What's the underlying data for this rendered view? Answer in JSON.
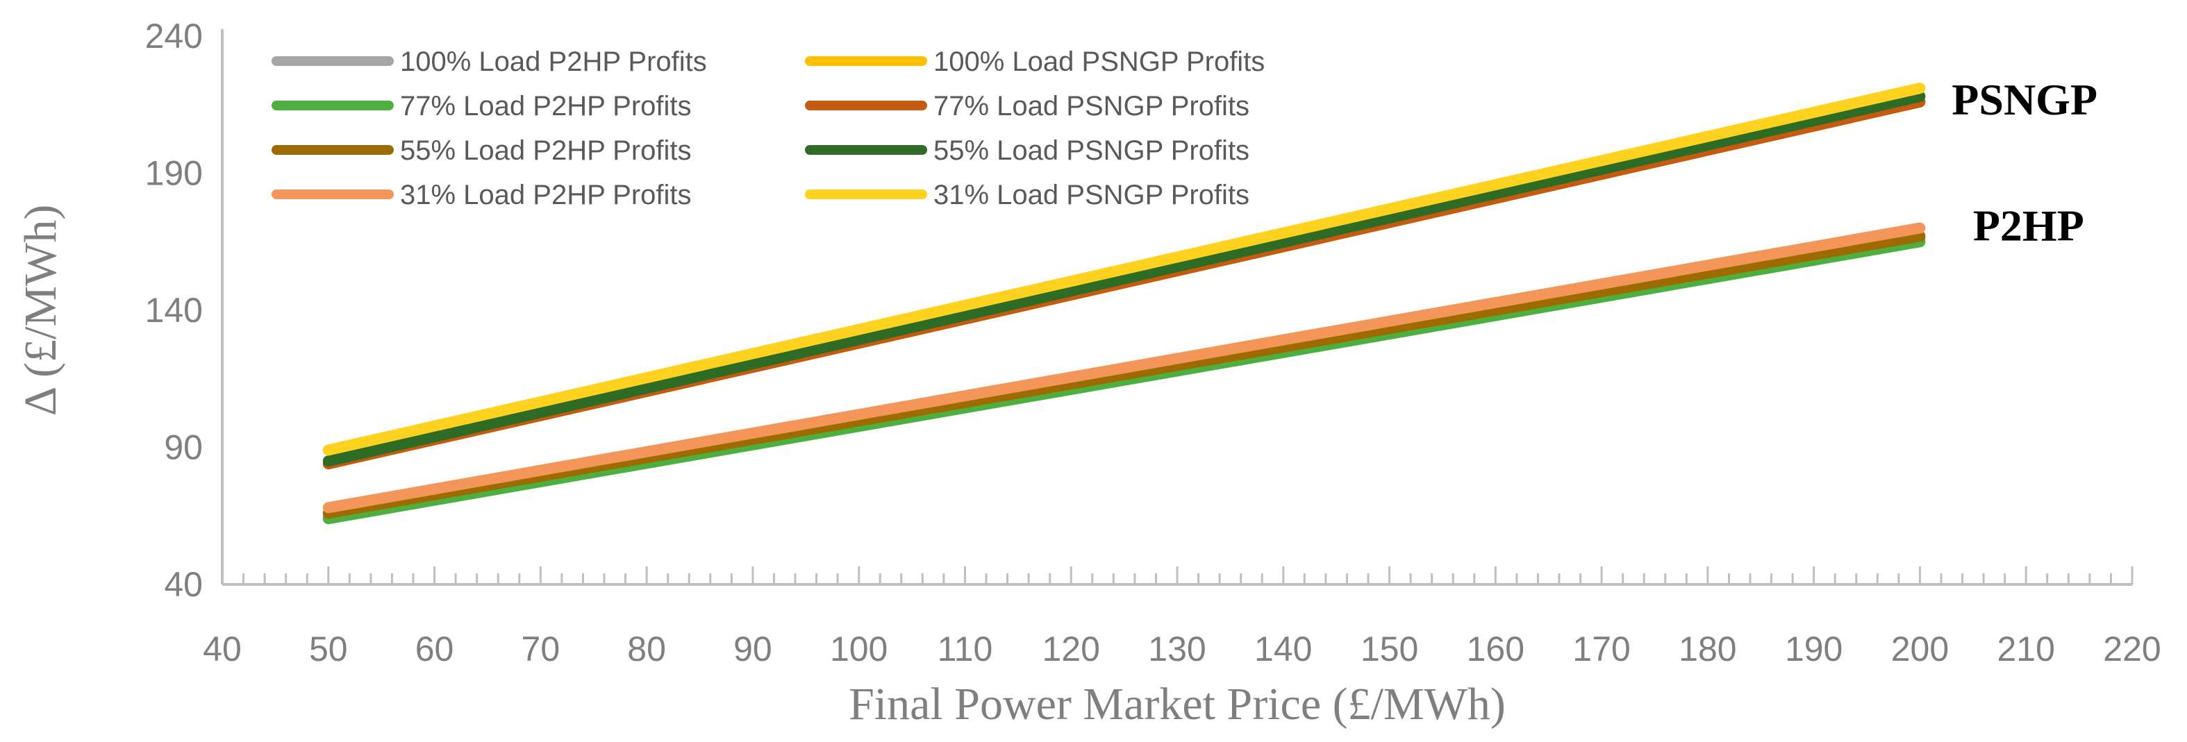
{
  "chart_data": {
    "type": "line",
    "xlabel": "Final Power Market Price (£/MWh)",
    "ylabel": "Δ (£/MWh)",
    "xlim": [
      40,
      220
    ],
    "ylim": [
      40,
      240
    ],
    "xticks": [
      "40",
      "50",
      "60",
      "70",
      "80",
      "90",
      "100",
      "110",
      "120",
      "130",
      "140",
      "150",
      "160",
      "170",
      "180",
      "190",
      "200",
      "210",
      "220"
    ],
    "yticks": [
      "240",
      "190",
      "140",
      "90",
      "40"
    ],
    "x_tick_values": [
      40,
      50,
      60,
      70,
      80,
      90,
      100,
      110,
      120,
      130,
      140,
      150,
      160,
      170,
      180,
      190,
      200,
      210,
      220
    ],
    "y_tick_values": [
      240,
      190,
      140,
      90,
      40
    ],
    "grid": false,
    "legend_position": "top-left",
    "series": [
      {
        "name": "100% Load P2HP Profits",
        "color": "#a5a5a5",
        "x": [
          50,
          200
        ],
        "y": [
          65,
          166
        ]
      },
      {
        "name": "100% Load PSNGP Profits",
        "color": "#ffc000",
        "x": [
          50,
          200
        ],
        "y": [
          84,
          216
        ]
      },
      {
        "name": "77% Load P2HP Profits",
        "color": "#4caf3f",
        "x": [
          50,
          200
        ],
        "y": [
          64,
          165
        ]
      },
      {
        "name": "77% Load PSNGP Profits",
        "color": "#c55a11",
        "x": [
          50,
          200
        ],
        "y": [
          84,
          216
        ]
      },
      {
        "name": "55% Load P2HP Profits",
        "color": "#9e6b00",
        "x": [
          50,
          200
        ],
        "y": [
          66,
          167
        ]
      },
      {
        "name": "55% Load PSNGP Profits",
        "color": "#2e6b24",
        "x": [
          50,
          200
        ],
        "y": [
          85,
          218
        ]
      },
      {
        "name": "31% Load P2HP Profits",
        "color": "#f4955a",
        "x": [
          50,
          200
        ],
        "y": [
          68,
          170
        ]
      },
      {
        "name": "31% Load PSNGP Profits",
        "color": "#ffd21f",
        "x": [
          50,
          200
        ],
        "y": [
          89,
          221
        ]
      }
    ],
    "annotations": [
      {
        "text": "PSNGP",
        "x": 203,
        "y": 217
      },
      {
        "text": "P2HP",
        "x": 205,
        "y": 171
      }
    ]
  }
}
